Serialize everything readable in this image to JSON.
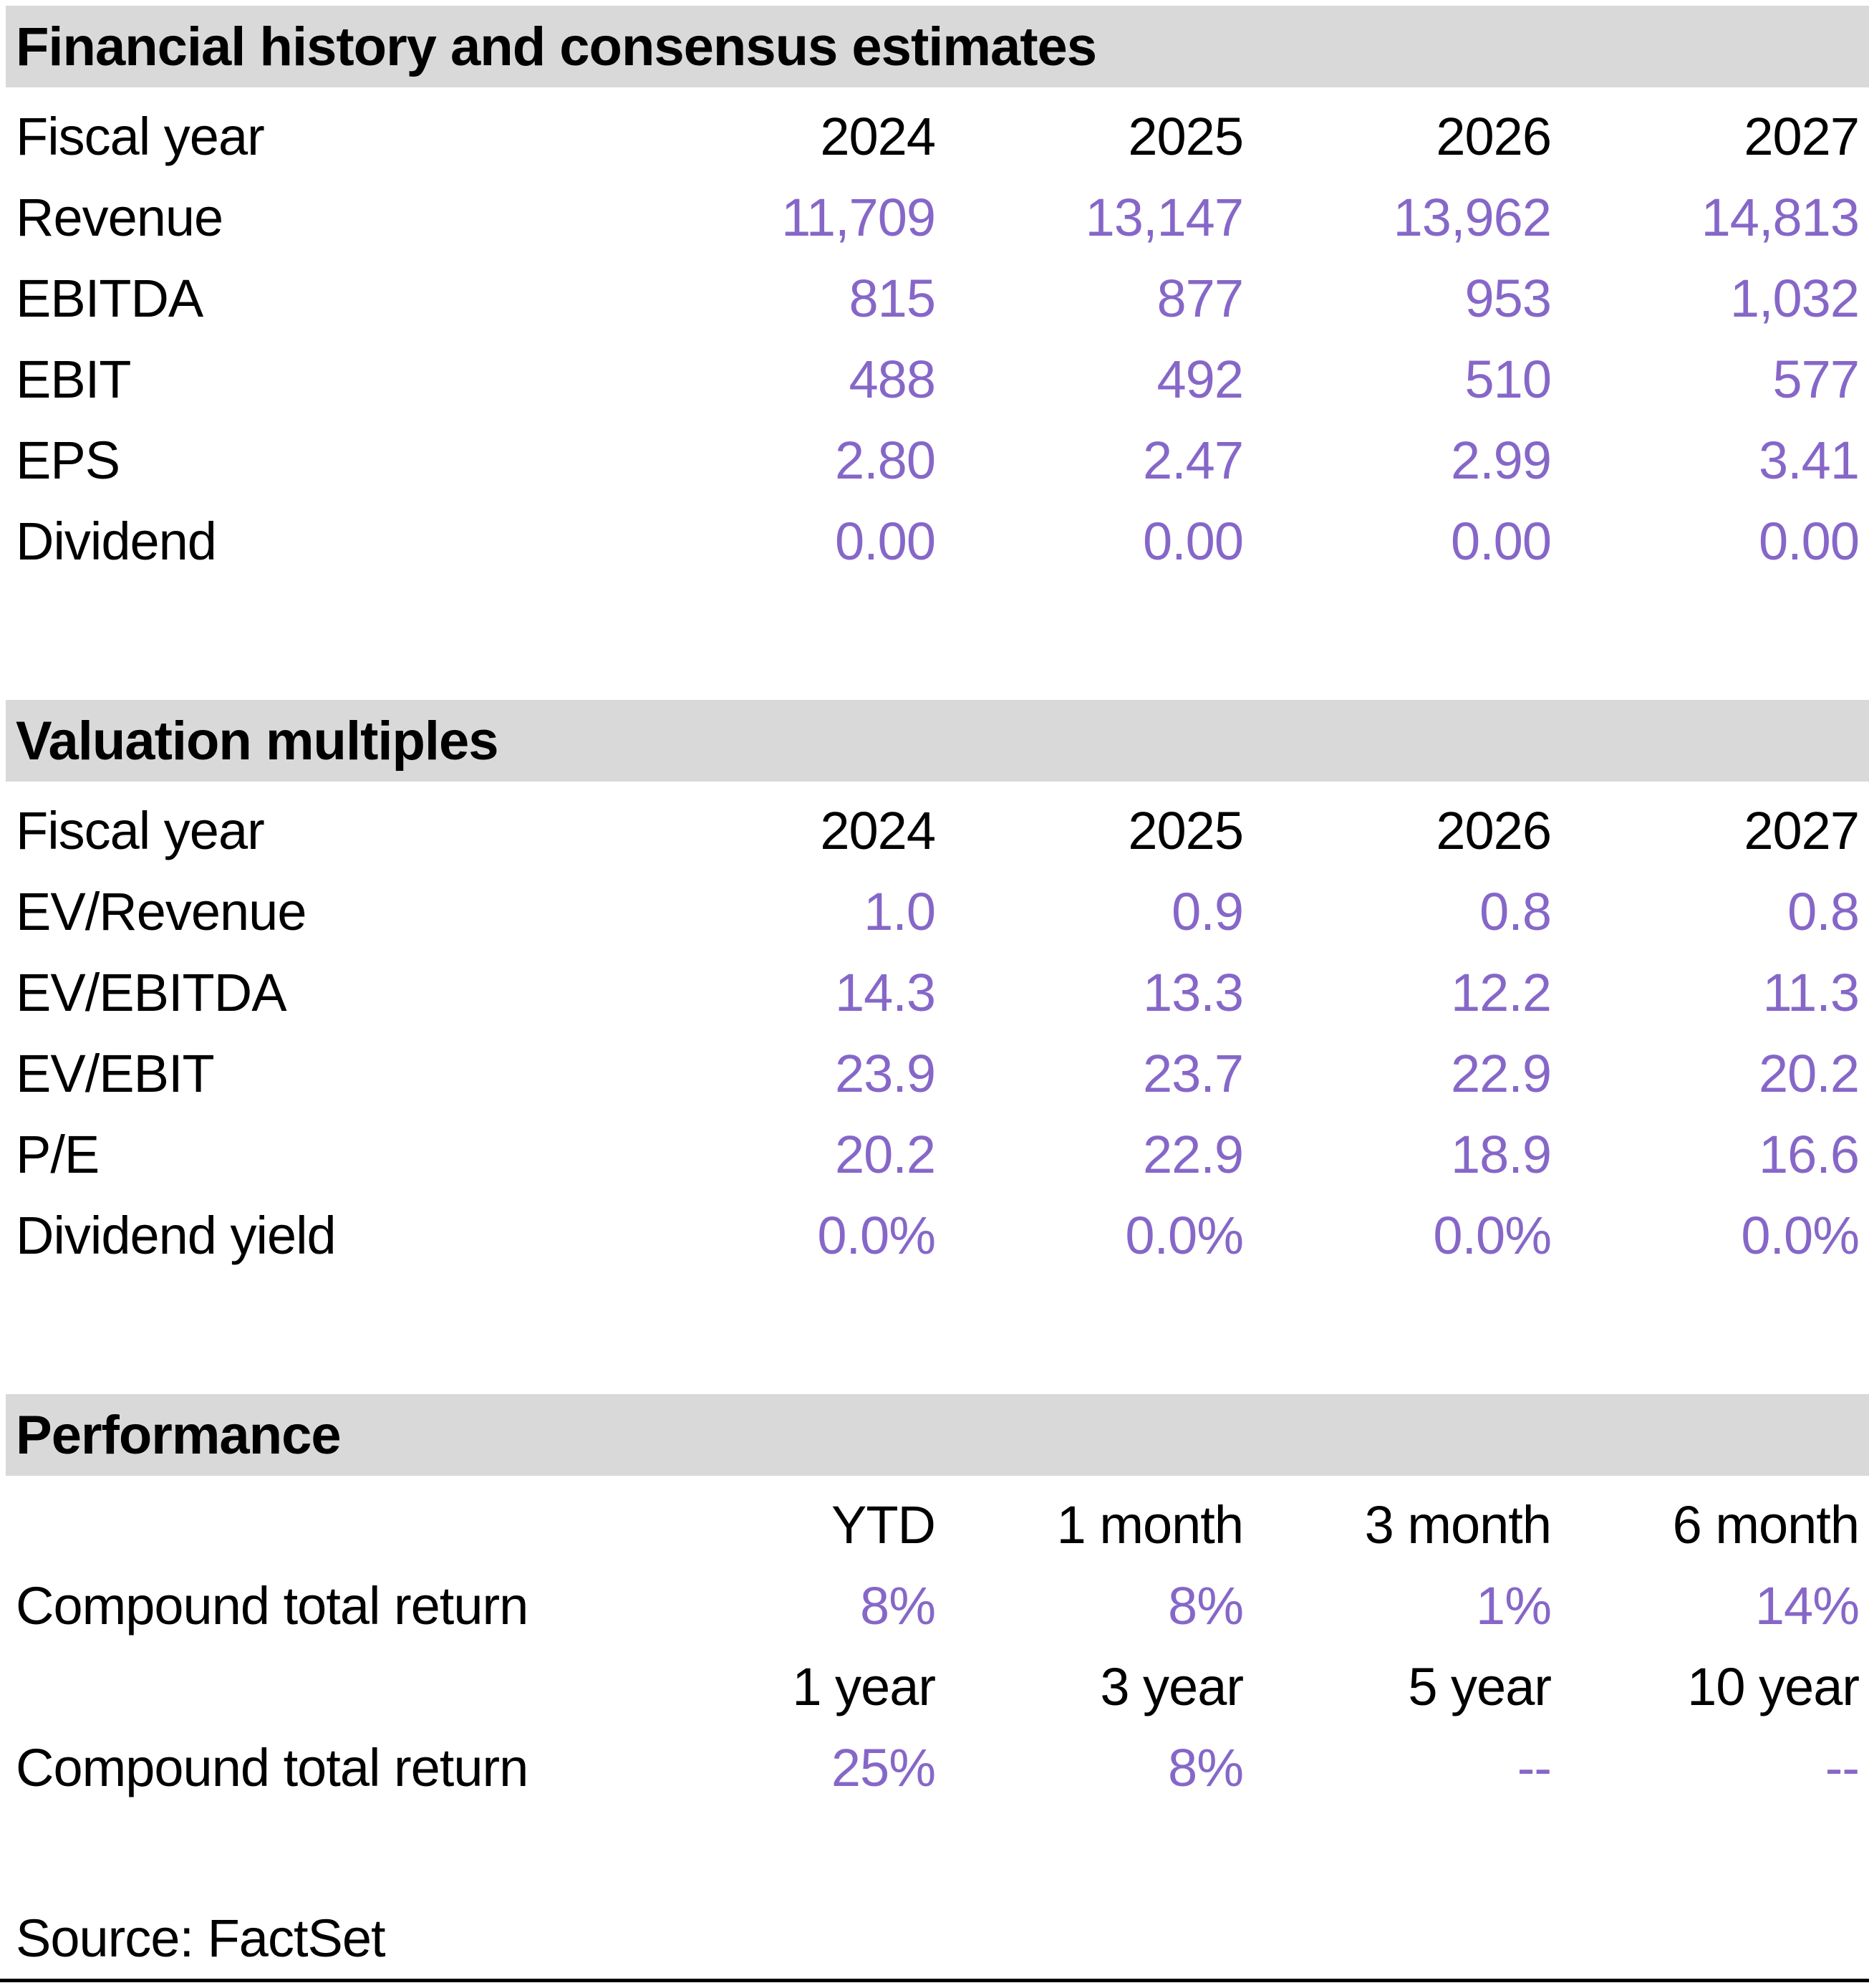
{
  "colors": {
    "accent_purple": "#8667c8",
    "header_bar_gray": "#d9d9d9",
    "text_black": "#000000"
  },
  "sections": [
    {
      "title": "Financial history and consensus estimates",
      "header_row": {
        "label": "Fiscal year",
        "cols": [
          "2024",
          "2025",
          "2026",
          "2027"
        ]
      },
      "rows": [
        {
          "label": "Revenue",
          "values": [
            "11,709",
            "13,147",
            "13,962",
            "14,813"
          ]
        },
        {
          "label": "EBITDA",
          "values": [
            "815",
            "877",
            "953",
            "1,032"
          ]
        },
        {
          "label": "EBIT",
          "values": [
            "488",
            "492",
            "510",
            "577"
          ]
        },
        {
          "label": "EPS",
          "values": [
            "2.80",
            "2.47",
            "2.99",
            "3.41"
          ]
        },
        {
          "label": "Dividend",
          "values": [
            "0.00",
            "0.00",
            "0.00",
            "0.00"
          ]
        }
      ]
    },
    {
      "title": "Valuation multiples",
      "header_row": {
        "label": "Fiscal year",
        "cols": [
          "2024",
          "2025",
          "2026",
          "2027"
        ]
      },
      "rows": [
        {
          "label": "EV/Revenue",
          "values": [
            "1.0",
            "0.9",
            "0.8",
            "0.8"
          ]
        },
        {
          "label": "EV/EBITDA",
          "values": [
            "14.3",
            "13.3",
            "12.2",
            "11.3"
          ]
        },
        {
          "label": "EV/EBIT",
          "values": [
            "23.9",
            "23.7",
            "22.9",
            "20.2"
          ]
        },
        {
          "label": "P/E",
          "values": [
            "20.2",
            "22.9",
            "18.9",
            "16.6"
          ]
        },
        {
          "label": "Dividend yield",
          "values": [
            "0.0%",
            "0.0%",
            "0.0%",
            "0.0%"
          ]
        }
      ]
    },
    {
      "title": "Performance",
      "rows": [
        {
          "label": "",
          "values": [
            "YTD",
            "1 month",
            "3 month",
            "6 month"
          ]
        },
        {
          "label": "Compound total return",
          "values": [
            "8%",
            "8%",
            "1%",
            "14%"
          ]
        },
        {
          "label": "",
          "values": [
            "1 year",
            "3 year",
            "5 year",
            "10 year"
          ]
        },
        {
          "label": "Compound total return",
          "values": [
            "25%",
            "8%",
            "--",
            "--"
          ]
        }
      ]
    }
  ],
  "source": "Source: FactSet"
}
